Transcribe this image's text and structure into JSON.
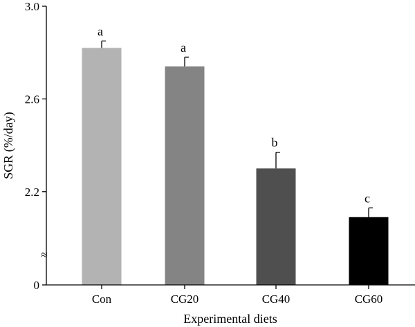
{
  "chart_data": {
    "type": "bar",
    "title": "",
    "xlabel": "Experimental diets",
    "ylabel": "SGR (%/day)",
    "categories": [
      "Con",
      "CG20",
      "CG40",
      "CG60"
    ],
    "values": [
      2.82,
      2.74,
      2.3,
      2.09
    ],
    "errors": [
      0.03,
      0.04,
      0.07,
      0.04
    ],
    "significance_letters": [
      "a",
      "a",
      "b",
      "c"
    ],
    "bar_colors": [
      "#b3b3b3",
      "#848484",
      "#4f4f4f",
      "#000000"
    ],
    "ylim": [
      2.0,
      3.0
    ],
    "y_axis_break": true,
    "y_ticks": [
      {
        "value": 0,
        "label": "0",
        "below_break": true
      },
      {
        "value": 2.2,
        "label": "2.2"
      },
      {
        "value": 2.6,
        "label": "2.6"
      },
      {
        "value": 3.0,
        "label": "3.0"
      }
    ],
    "break_symbol": "≈",
    "grid": false,
    "legend": "none"
  }
}
